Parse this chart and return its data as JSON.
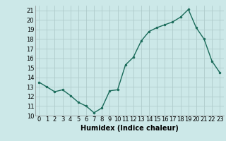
{
  "x": [
    0,
    1,
    2,
    3,
    4,
    5,
    6,
    7,
    8,
    9,
    10,
    11,
    12,
    13,
    14,
    15,
    16,
    17,
    18,
    19,
    20,
    21,
    22,
    23
  ],
  "y": [
    13.5,
    13.0,
    12.5,
    12.7,
    12.1,
    11.4,
    11.0,
    10.3,
    10.8,
    12.6,
    12.7,
    15.3,
    16.1,
    17.8,
    18.8,
    19.2,
    19.5,
    19.8,
    20.3,
    21.1,
    19.2,
    18.0,
    15.7,
    14.5
  ],
  "line_color": "#1a6b5a",
  "marker": "o",
  "marker_size": 2.0,
  "xlabel": "Humidex (Indice chaleur)",
  "xlim": [
    -0.5,
    23.5
  ],
  "ylim": [
    10,
    21.5
  ],
  "yticks": [
    10,
    11,
    12,
    13,
    14,
    15,
    16,
    17,
    18,
    19,
    20,
    21
  ],
  "xticks": [
    0,
    1,
    2,
    3,
    4,
    5,
    6,
    7,
    8,
    9,
    10,
    11,
    12,
    13,
    14,
    15,
    16,
    17,
    18,
    19,
    20,
    21,
    22,
    23
  ],
  "bg_color": "#cce8e8",
  "grid_color": "#b0cccc",
  "line_width": 1.0,
  "tick_fontsize": 6.0,
  "xlabel_fontsize": 7.0
}
